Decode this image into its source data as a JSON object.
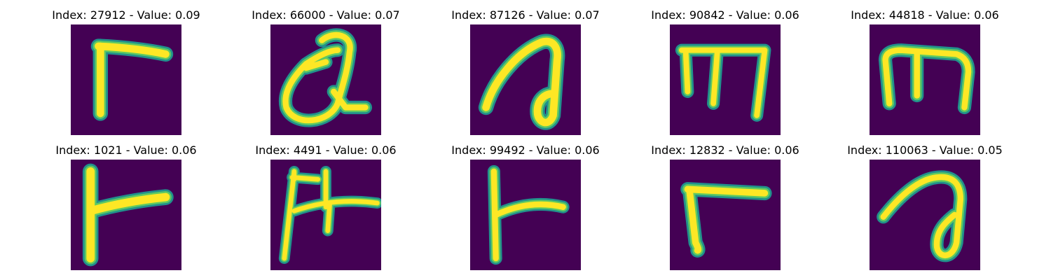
{
  "colors": {
    "background": "#440154",
    "stroke_outer": "#21918c",
    "stroke_mid": "#5ec962",
    "stroke_core": "#fde725"
  },
  "panels": [
    {
      "title": "Index: 27912 - Value: 0.09",
      "image": "handwritten-glyph-gamma-shape"
    },
    {
      "title": "Index: 66000 - Value: 0.07",
      "image": "handwritten-glyph-loop-shape"
    },
    {
      "title": "Index: 87126 - Value: 0.07",
      "image": "handwritten-glyph-hook-shape"
    },
    {
      "title": "Index: 90842 - Value: 0.06",
      "image": "handwritten-glyph-m-shape"
    },
    {
      "title": "Index: 44818 - Value: 0.06",
      "image": "handwritten-glyph-m-shape"
    },
    {
      "title": "Index: 1021 - Value: 0.06",
      "image": "handwritten-glyph-t-shape"
    },
    {
      "title": "Index: 4491 - Value: 0.06",
      "image": "handwritten-glyph-h-shape"
    },
    {
      "title": "Index: 99492 - Value: 0.06",
      "image": "handwritten-glyph-t-shape"
    },
    {
      "title": "Index: 12832 - Value: 0.06",
      "image": "handwritten-glyph-gamma-shape"
    },
    {
      "title": "Index: 110063 - Value: 0.05",
      "image": "handwritten-glyph-hook-shape"
    }
  ]
}
